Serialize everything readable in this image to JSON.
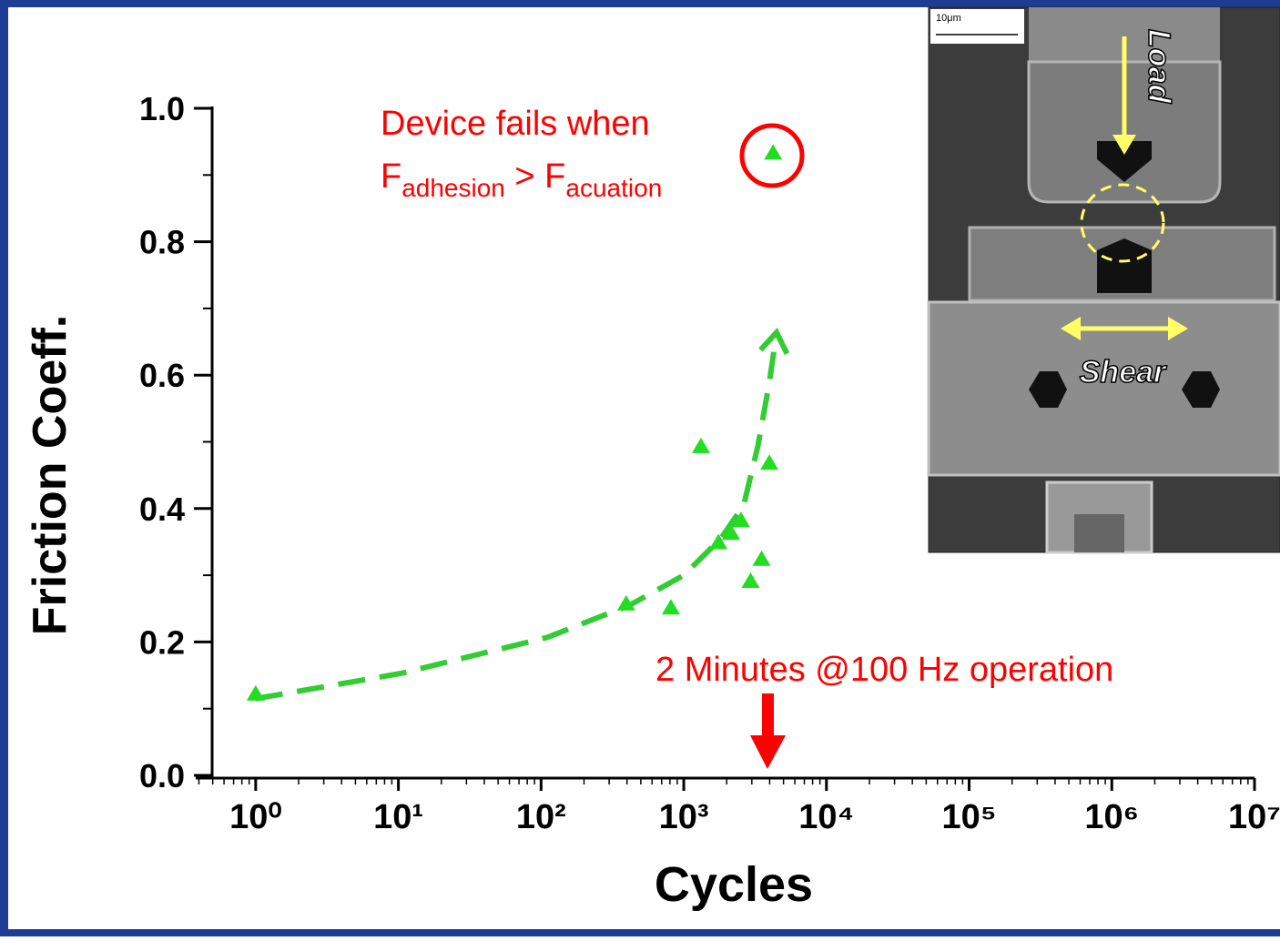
{
  "chart_data": {
    "type": "scatter",
    "x_label": "Cycles",
    "y_label": "Friction Coeff.",
    "x": [
      1,
      395,
      813,
      1320,
      1750,
      2150,
      2520,
      2940,
      3510,
      3980,
      4230
    ],
    "values": [
      0.123,
      0.258,
      0.252,
      0.494,
      0.35,
      0.364,
      0.383,
      0.292,
      0.325,
      0.469,
      0.934
    ],
    "color": "#22dd22",
    "trend": {
      "x": [
        1,
        10.5,
        111,
        417,
        1000,
        1820,
        2630,
        3310,
        3980,
        4470
      ],
      "values": [
        0.115,
        0.153,
        0.207,
        0.255,
        0.3,
        0.355,
        0.405,
        0.494,
        0.589,
        0.664
      ],
      "color": "#33cc33"
    },
    "xlog": true,
    "xlim": [
      0.38,
      10000000
    ],
    "ylim": [
      0,
      1
    ],
    "xticks": [
      {
        "value": 1,
        "label": "10⁰"
      },
      {
        "value": 10,
        "label": "10¹"
      },
      {
        "value": 100,
        "label": "10²"
      },
      {
        "value": 1000,
        "label": "10³"
      },
      {
        "value": 10000,
        "label": "10⁴"
      },
      {
        "value": 100000,
        "label": "10⁵"
      },
      {
        "value": 1000000,
        "label": "10⁶"
      },
      {
        "value": 10000000,
        "label": "10⁷"
      }
    ],
    "yticks": [
      {
        "value": 0,
        "label": "0.0"
      },
      {
        "value": 0.2,
        "label": "0.2"
      },
      {
        "value": 0.4,
        "label": "0.4"
      },
      {
        "value": 0.6,
        "label": "0.6"
      },
      {
        "value": 0.8,
        "label": "0.8"
      },
      {
        "value": 1,
        "label": "1.0"
      }
    ],
    "annotations": {
      "fail_line1": "Device fails when",
      "fail_line2": [
        "F",
        "adhesion",
        " > F",
        "acuation"
      ],
      "time_note": "2 Minutes @100 Hz operation"
    },
    "inset": {
      "scale": "10μm",
      "load": "Load",
      "shear": "Shear"
    }
  }
}
